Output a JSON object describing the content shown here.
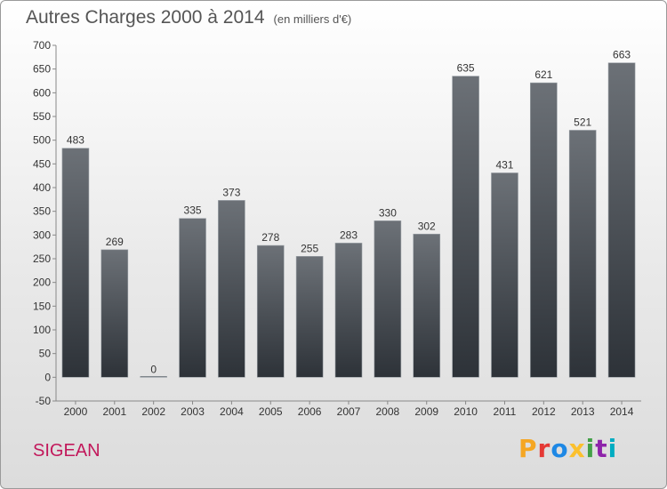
{
  "header": {
    "title": "Autres Charges 2000 à 2014",
    "unit": "(en milliers d'€)"
  },
  "footer": {
    "commune": "SIGEAN",
    "logo": "Proxiti"
  },
  "colors": {
    "bar_top": "#6c7177",
    "bar_bottom": "#2d3238",
    "title": "#555555",
    "commune": "#c2185b",
    "logo_letters": [
      "#f5a623",
      "#e53935",
      "#1e88e5",
      "#fbc02d",
      "#43a047",
      "#8e24aa",
      "#00acc1"
    ]
  },
  "chart_data": {
    "type": "bar",
    "title": "Autres Charges 2000 à 2014",
    "subtitle": "(en milliers d'€)",
    "categories": [
      "2000",
      "2001",
      "2002",
      "2003",
      "2004",
      "2005",
      "2006",
      "2007",
      "2008",
      "2009",
      "2010",
      "2011",
      "2012",
      "2013",
      "2014"
    ],
    "values": [
      483,
      269,
      0,
      335,
      373,
      278,
      255,
      283,
      330,
      302,
      635,
      431,
      621,
      521,
      663
    ],
    "ylim": [
      -50,
      700
    ],
    "yticks": [
      -50,
      0,
      50,
      100,
      150,
      200,
      250,
      300,
      350,
      400,
      450,
      500,
      550,
      600,
      650,
      700
    ],
    "grid": false,
    "legend": "none"
  }
}
